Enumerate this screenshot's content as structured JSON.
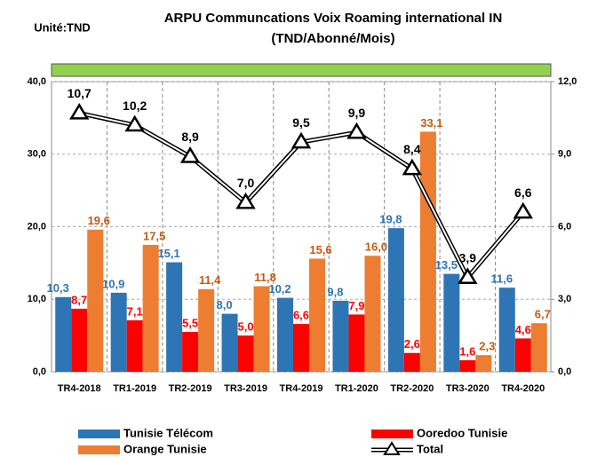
{
  "chart_data": {
    "type": "bar",
    "title": "ARPU Communcations  Voix Roaming international IN",
    "subtitle": "(TND/Abonné/Mois)",
    "annotation": "Unité:TND",
    "categories": [
      "TR4-2018",
      "TR1-2019",
      "TR2-2019",
      "TR3-2019",
      "TR4-2019",
      "TR1-2020",
      "TR2-2020",
      "TR3-2020",
      "TR4-2020"
    ],
    "series": [
      {
        "name": "Tunisie Télécom",
        "color": "#2e75b6",
        "label_color": "#2e75b6",
        "values": [
          10.3,
          10.9,
          15.1,
          8.0,
          10.2,
          9.8,
          19.8,
          13.5,
          11.6
        ],
        "value_labels": [
          "10,3",
          "10,9",
          "15,1",
          "8,0",
          "10,2",
          "9,8",
          "19,8",
          "13,5",
          "11,6"
        ]
      },
      {
        "name": "Ooredoo Tunisie",
        "color": "#ff0000",
        "label_color": "#ff0000",
        "values": [
          8.7,
          7.1,
          5.5,
          5.0,
          6.6,
          7.9,
          2.6,
          1.6,
          4.6
        ],
        "value_labels": [
          "8,7",
          "7,1",
          "5,5",
          "5,0",
          "6,6",
          "7,9",
          "2,6",
          "1,6",
          "4,6"
        ]
      },
      {
        "name": "Orange Tunisie",
        "color": "#ed7d31",
        "label_color": "#c55a11",
        "values": [
          19.6,
          17.5,
          11.4,
          11.8,
          15.6,
          16.0,
          33.1,
          2.3,
          6.7
        ],
        "value_labels": [
          "19,6",
          "17,5",
          "11,4",
          "11,8",
          "15,6",
          "16,0",
          "33,1",
          "2,3",
          "6,7"
        ]
      },
      {
        "name": "Total",
        "type": "line",
        "axis": "y2",
        "color": "#000000",
        "label_color": "#000000",
        "values": [
          10.7,
          10.2,
          8.9,
          7.0,
          9.5,
          9.9,
          8.4,
          3.9,
          6.6
        ],
        "value_labels": [
          "10,7",
          "10,2",
          "8,9",
          "7,0",
          "9,5",
          "9,9",
          "8,4",
          "3,9",
          "6,6"
        ]
      }
    ],
    "ylim": [
      0,
      40
    ],
    "yticks": [
      {
        "value": 0,
        "label": "0,0"
      },
      {
        "value": 10,
        "label": "10,0"
      },
      {
        "value": 20,
        "label": "20,0"
      },
      {
        "value": 30,
        "label": "30,0"
      },
      {
        "value": 40,
        "label": "40,0"
      }
    ],
    "y2lim": [
      0,
      12
    ],
    "y2ticks": [
      {
        "value": 0,
        "label": "0,0"
      },
      {
        "value": 3,
        "label": "3,0"
      },
      {
        "value": 6,
        "label": "6,0"
      },
      {
        "value": 9,
        "label": "9,0"
      },
      {
        "value": 12,
        "label": "12,0"
      }
    ],
    "grid": true,
    "legend": "bottom"
  }
}
